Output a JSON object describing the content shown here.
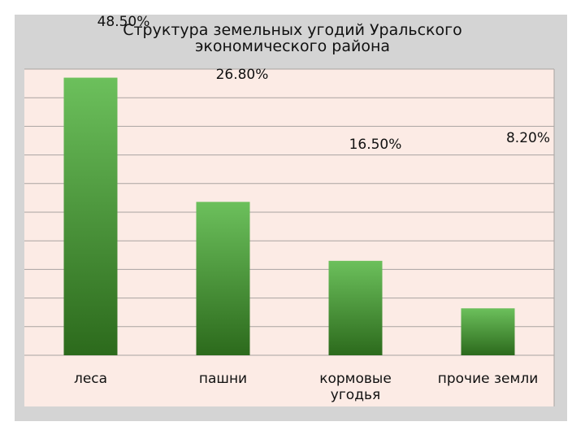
{
  "chart_data": {
    "type": "bar",
    "title": "Структура земельных угодий Уральского экономического района",
    "categories": [
      "леса",
      "пашни",
      "кормовые угодья",
      "прочие земли"
    ],
    "values": [
      48.5,
      26.8,
      16.5,
      8.2
    ],
    "value_labels": [
      "48.50%",
      "26.80%",
      "16.50%",
      "8.20%"
    ],
    "color": "#4f9a3c",
    "ylim": [
      0,
      50
    ],
    "yticks": [
      0,
      5,
      10,
      15,
      20,
      25,
      30,
      35,
      40,
      45,
      50
    ],
    "grid": true
  }
}
